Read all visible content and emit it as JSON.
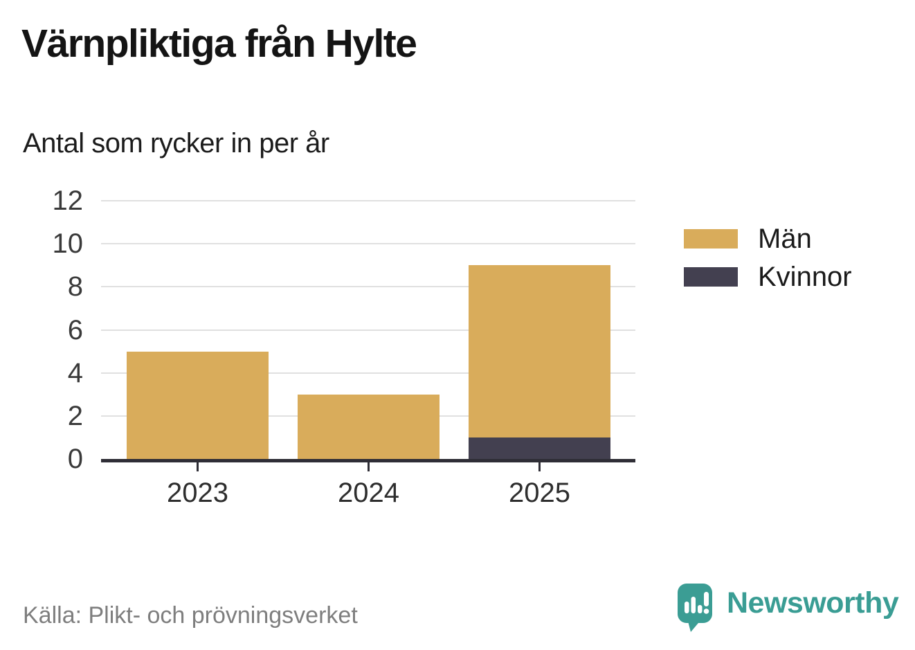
{
  "title": "Värnpliktiga från Hylte",
  "subtitle": "Antal som rycker in per år",
  "source": "Källa: Plikt- och prövningsverket",
  "brand": {
    "name": "Newsworthy",
    "color": "#3a9d94",
    "icon": "speech-bubble-bar-chart-exclamation-icon"
  },
  "colors": {
    "men": "#d9ac5b",
    "women": "#434050",
    "gridline": "#e0e0e0",
    "axis": "#2f2e36",
    "tick_label": "#3a3a3a",
    "source_text": "#7e7e7e"
  },
  "chart_data": {
    "type": "bar",
    "stacked": true,
    "title": "Värnpliktiga från Hylte",
    "subtitle": "Antal som rycker in per år",
    "categories": [
      "2023",
      "2024",
      "2025"
    ],
    "series": [
      {
        "name": "Män",
        "color": "#d9ac5b",
        "values": [
          5,
          3,
          8
        ]
      },
      {
        "name": "Kvinnor",
        "color": "#434050",
        "values": [
          0,
          0,
          1
        ]
      }
    ],
    "stack_order": [
      "Kvinnor",
      "Män"
    ],
    "totals": [
      5,
      3,
      9
    ],
    "xlabel": "",
    "ylabel": "",
    "ylim": [
      0,
      12
    ],
    "yticks": [
      0,
      2,
      4,
      6,
      8,
      10,
      12
    ],
    "grid": true,
    "legend_position": "right"
  }
}
